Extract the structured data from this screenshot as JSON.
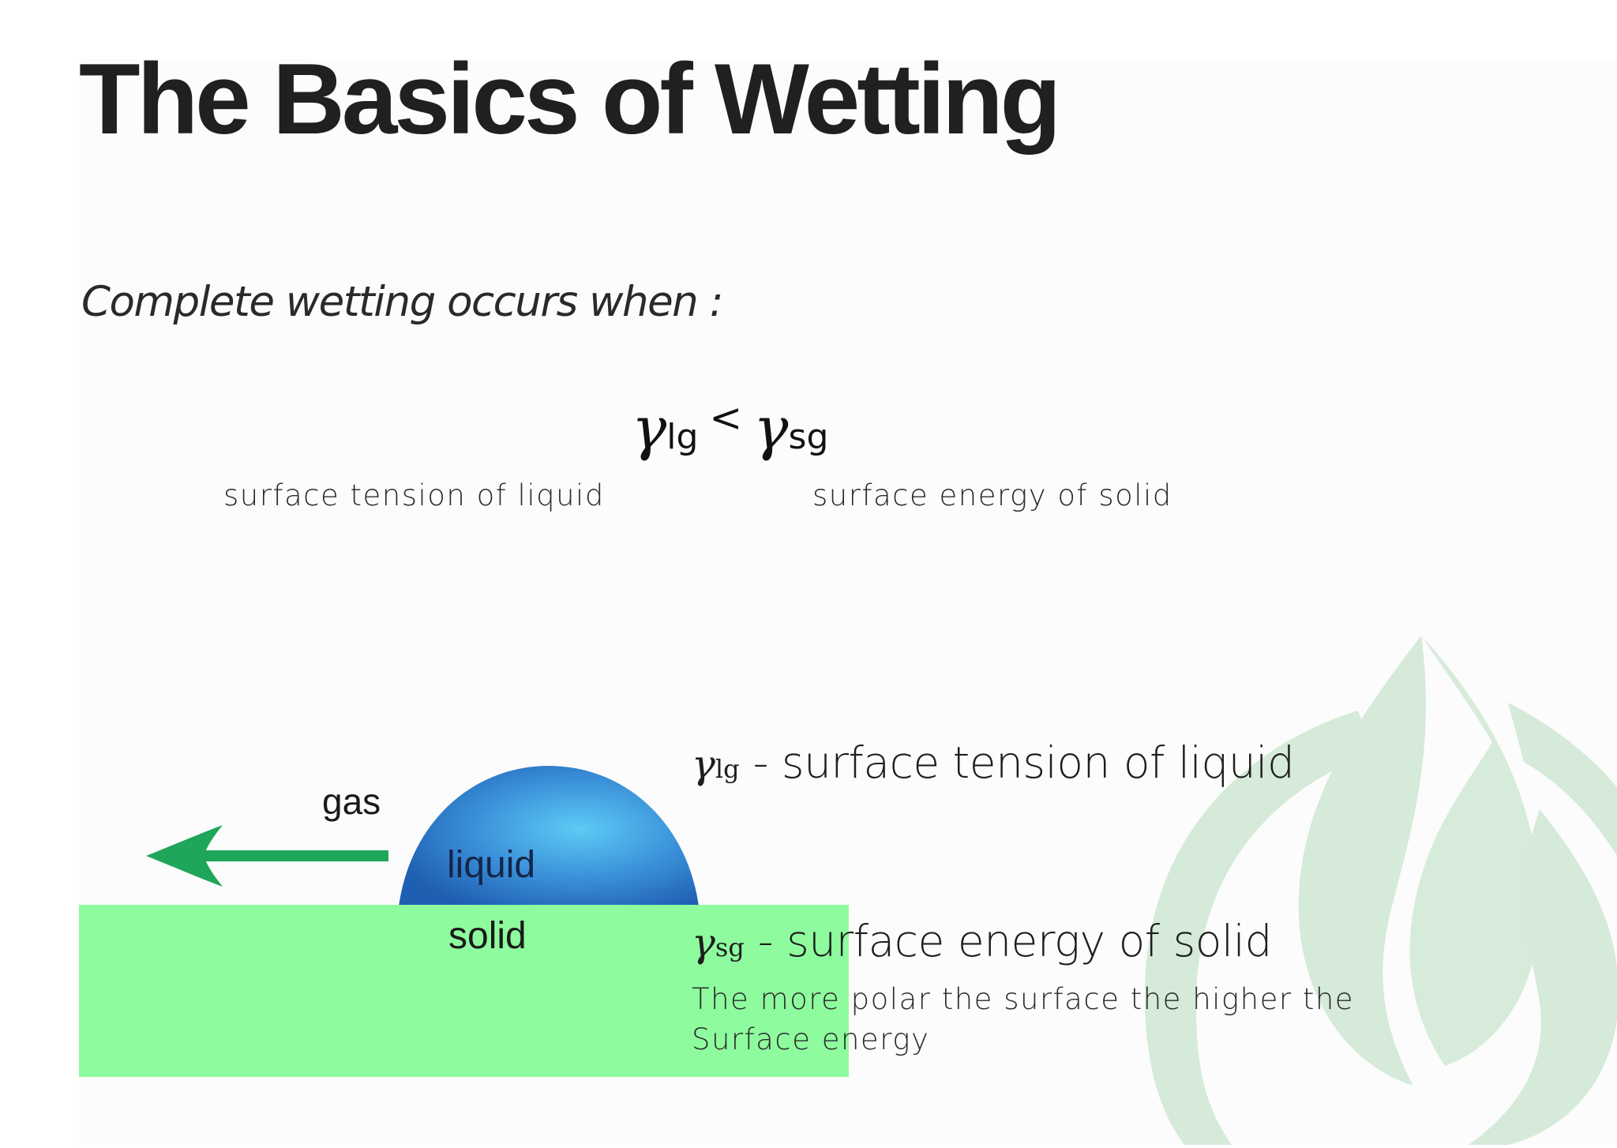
{
  "title": "The Basics of Wetting",
  "subtitle": "Complete wetting occurs when :",
  "formula": {
    "left_symbol": "γ",
    "left_subscript": "lg",
    "operator": "<",
    "right_symbol": "γ",
    "right_subscript": "sg"
  },
  "captions": {
    "left": "surface tension of liquid",
    "right": "surface energy of solid"
  },
  "diagram": {
    "gas_label": "gas",
    "liquid_label": "liquid",
    "solid_label": "solid",
    "colors": {
      "solid": "#8efc9e",
      "arrow": "#1fa65a",
      "droplet_light": "#5ccbf5",
      "droplet_dark": "#1f5fb2"
    }
  },
  "definitions": [
    {
      "symbol": "γ",
      "subscript": "lg",
      "text": " - surface tension of liquid"
    },
    {
      "symbol": "γ",
      "subscript": "sg",
      "text": " - surface energy of solid"
    }
  ],
  "note": {
    "line1": "The more polar the surface the higher the",
    "line2": "Surface energy"
  },
  "decoration": {
    "leaf_color": "#d5ead9",
    "icon": "water-drop-leaf-logo"
  }
}
